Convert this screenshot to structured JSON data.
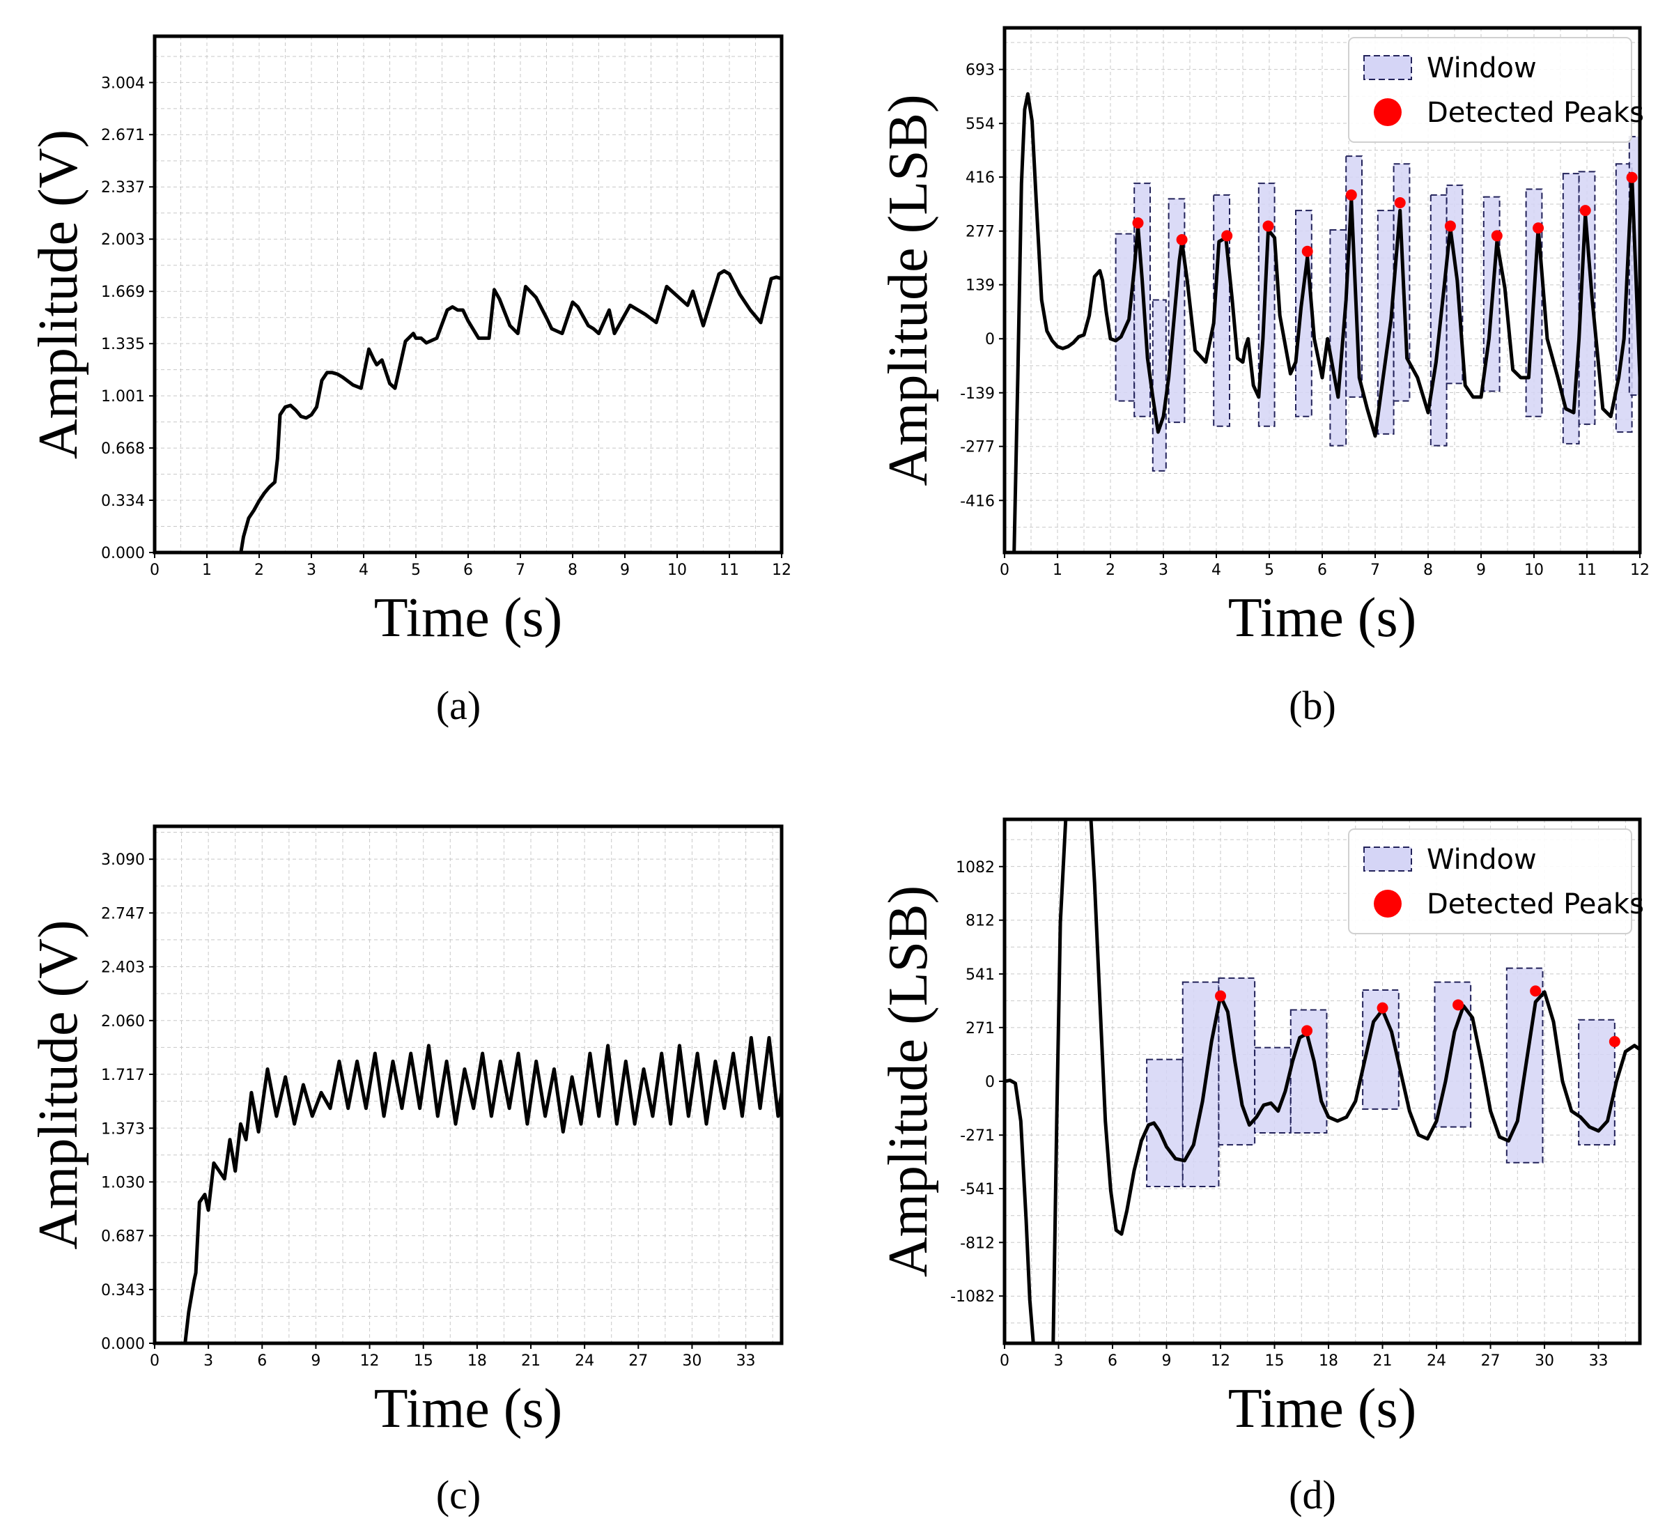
{
  "figure": {
    "panels": [
      "(a)",
      "(b)",
      "(c)",
      "(d)"
    ]
  },
  "chart_data": [
    {
      "id": "a",
      "type": "line",
      "caption_letter": "a",
      "xlabel": "Time (s)",
      "ylabel": "Amplitude (V)",
      "xlim": [
        0,
        12
      ],
      "ylim": [
        0,
        3.3
      ],
      "xticks": [
        0,
        1,
        2,
        3,
        4,
        5,
        6,
        7,
        8,
        9,
        10,
        11,
        12
      ],
      "yticks": [
        0.0,
        0.334,
        0.668,
        1.001,
        1.335,
        1.669,
        2.003,
        2.337,
        2.671,
        3.004
      ],
      "ytick_labels": [
        "0.000",
        "0.334",
        "0.668",
        "1.001",
        "1.335",
        "1.669",
        "2.003",
        "2.337",
        "2.671",
        "3.004"
      ],
      "minor_x": 0.5,
      "minor_y": 0.1669,
      "line_color": "#000000",
      "series": [
        {
          "name": "signal",
          "x": [
            0,
            1.65,
            1.7,
            1.8,
            1.9,
            2.0,
            2.1,
            2.2,
            2.3,
            2.35,
            2.4,
            2.5,
            2.6,
            2.7,
            2.8,
            2.9,
            3.0,
            3.1,
            3.2,
            3.3,
            3.4,
            3.5,
            3.6,
            3.8,
            3.95,
            4.1,
            4.2,
            4.25,
            4.35,
            4.5,
            4.6,
            4.8,
            4.95,
            5.0,
            5.1,
            5.2,
            5.4,
            5.6,
            5.7,
            5.8,
            5.9,
            6.0,
            6.2,
            6.4,
            6.5,
            6.6,
            6.8,
            6.95,
            7.1,
            7.3,
            7.5,
            7.6,
            7.8,
            8.0,
            8.1,
            8.3,
            8.4,
            8.5,
            8.7,
            8.8,
            9.1,
            9.2,
            9.4,
            9.6,
            9.8,
            10.0,
            10.2,
            10.3,
            10.5,
            10.8,
            10.9,
            11.0,
            11.2,
            11.4,
            11.6,
            11.8,
            11.9,
            12.0
          ],
          "y": [
            0,
            0,
            0.1,
            0.22,
            0.27,
            0.33,
            0.38,
            0.42,
            0.45,
            0.6,
            0.88,
            0.93,
            0.94,
            0.91,
            0.87,
            0.86,
            0.88,
            0.93,
            1.1,
            1.15,
            1.15,
            1.14,
            1.12,
            1.07,
            1.05,
            1.3,
            1.23,
            1.2,
            1.23,
            1.08,
            1.05,
            1.35,
            1.4,
            1.37,
            1.37,
            1.34,
            1.37,
            1.55,
            1.57,
            1.55,
            1.55,
            1.48,
            1.37,
            1.37,
            1.68,
            1.62,
            1.45,
            1.4,
            1.7,
            1.63,
            1.5,
            1.43,
            1.4,
            1.6,
            1.57,
            1.45,
            1.43,
            1.4,
            1.55,
            1.4,
            1.58,
            1.56,
            1.52,
            1.47,
            1.7,
            1.64,
            1.58,
            1.67,
            1.45,
            1.78,
            1.8,
            1.78,
            1.65,
            1.55,
            1.47,
            1.75,
            1.76,
            1.75
          ]
        }
      ]
    },
    {
      "id": "b",
      "type": "line",
      "caption_letter": "b",
      "xlabel": "Time (s)",
      "ylabel": "Amplitude (LSB)",
      "xlim": [
        0,
        12
      ],
      "ylim": [
        -550,
        800
      ],
      "xticks": [
        0,
        1,
        2,
        3,
        4,
        5,
        6,
        7,
        8,
        9,
        10,
        11,
        12
      ],
      "yticks": [
        -416,
        -277,
        -139,
        0,
        139,
        277,
        416,
        554,
        693
      ],
      "ytick_labels": [
        "-416",
        "-277",
        "-139",
        "0",
        "139",
        "277",
        "416",
        "554",
        "693"
      ],
      "minor_x": 0.5,
      "minor_y": 69.3,
      "line_color": "#000000",
      "window_color": "#d5d5f6",
      "window_edge": "#22225a",
      "peak_color": "#ff0000",
      "legend": {
        "window": "Window",
        "peaks": "Detected Peaks",
        "position": "top-right"
      },
      "series": [
        {
          "name": "filtered",
          "x": [
            0.18,
            0.25,
            0.32,
            0.38,
            0.44,
            0.52,
            0.6,
            0.7,
            0.8,
            0.9,
            1.0,
            1.1,
            1.2,
            1.3,
            1.4,
            1.5,
            1.6,
            1.7,
            1.8,
            1.85,
            1.92,
            2.0,
            2.1,
            2.2,
            2.35,
            2.45,
            2.52,
            2.6,
            2.7,
            2.8,
            2.9,
            3.0,
            3.1,
            3.2,
            3.3,
            3.35,
            3.45,
            3.6,
            3.8,
            3.95,
            4.05,
            4.18,
            4.3,
            4.4,
            4.5,
            4.55,
            4.6,
            4.7,
            4.8,
            4.88,
            4.98,
            5.1,
            5.2,
            5.4,
            5.5,
            5.6,
            5.72,
            5.85,
            6.0,
            6.1,
            6.3,
            6.45,
            6.55,
            6.7,
            6.85,
            7.0,
            7.15,
            7.3,
            7.47,
            7.6,
            7.8,
            8.0,
            8.15,
            8.3,
            8.42,
            8.55,
            8.7,
            8.85,
            9.0,
            9.15,
            9.3,
            9.45,
            9.6,
            9.75,
            9.9,
            10.08,
            10.25,
            10.45,
            10.6,
            10.75,
            10.85,
            10.97,
            11.1,
            11.3,
            11.45,
            11.6,
            11.7,
            11.85,
            12.0
          ],
          "y": [
            -550,
            -100,
            400,
            590,
            630,
            560,
            350,
            100,
            20,
            -5,
            -20,
            -25,
            -20,
            -10,
            5,
            10,
            60,
            160,
            175,
            150,
            70,
            0,
            -5,
            5,
            50,
            180,
            290,
            150,
            -50,
            -150,
            -240,
            -200,
            -100,
            50,
            200,
            250,
            150,
            -30,
            -60,
            40,
            250,
            260,
            100,
            -50,
            -60,
            -20,
            0,
            -120,
            -150,
            0,
            280,
            260,
            60,
            -90,
            -60,
            80,
            210,
            0,
            -100,
            0,
            -150,
            100,
            360,
            -100,
            -180,
            -250,
            -100,
            50,
            330,
            -50,
            -100,
            -190,
            -60,
            130,
            285,
            150,
            -120,
            -150,
            -150,
            0,
            250,
            130,
            -80,
            -100,
            -100,
            285,
            0,
            -100,
            -180,
            -190,
            0,
            320,
            100,
            -180,
            -200,
            -100,
            0,
            420,
            -100
          ]
        }
      ],
      "windows": [
        {
          "x0": 2.1,
          "x1": 2.45,
          "y0": -160,
          "y1": 270
        },
        {
          "x0": 2.45,
          "x1": 2.75,
          "y0": -200,
          "y1": 400
        },
        {
          "x0": 2.8,
          "x1": 3.05,
          "y0": -340,
          "y1": 100
        },
        {
          "x0": 3.1,
          "x1": 3.4,
          "y0": -215,
          "y1": 360
        },
        {
          "x0": 3.95,
          "x1": 4.25,
          "y0": -225,
          "y1": 370
        },
        {
          "x0": 4.8,
          "x1": 5.1,
          "y0": -225,
          "y1": 400
        },
        {
          "x0": 5.5,
          "x1": 5.8,
          "y0": -200,
          "y1": 330
        },
        {
          "x0": 6.15,
          "x1": 6.45,
          "y0": -275,
          "y1": 280
        },
        {
          "x0": 6.45,
          "x1": 6.75,
          "y0": -150,
          "y1": 470
        },
        {
          "x0": 7.05,
          "x1": 7.35,
          "y0": -245,
          "y1": 330
        },
        {
          "x0": 7.35,
          "x1": 7.65,
          "y0": -160,
          "y1": 450
        },
        {
          "x0": 8.05,
          "x1": 8.35,
          "y0": -275,
          "y1": 370
        },
        {
          "x0": 8.35,
          "x1": 8.65,
          "y0": -115,
          "y1": 395
        },
        {
          "x0": 9.05,
          "x1": 9.35,
          "y0": -135,
          "y1": 365
        },
        {
          "x0": 9.85,
          "x1": 10.15,
          "y0": -200,
          "y1": 385
        },
        {
          "x0": 10.55,
          "x1": 10.85,
          "y0": -270,
          "y1": 425
        },
        {
          "x0": 10.85,
          "x1": 11.15,
          "y0": -220,
          "y1": 430
        },
        {
          "x0": 11.55,
          "x1": 11.85,
          "y0": -240,
          "y1": 450
        },
        {
          "x0": 11.8,
          "x1": 12.1,
          "y0": -145,
          "y1": 520
        }
      ],
      "peaks": {
        "x": [
          2.52,
          3.35,
          4.2,
          4.98,
          5.72,
          6.55,
          7.47,
          8.42,
          9.3,
          10.08,
          10.97,
          11.85
        ],
        "y": [
          298,
          255,
          265,
          290,
          225,
          370,
          350,
          290,
          265,
          285,
          330,
          415
        ]
      }
    },
    {
      "id": "c",
      "type": "line",
      "caption_letter": "c",
      "xlabel": "Time (s)",
      "ylabel": "Amplitude (V)",
      "xlim": [
        0,
        35
      ],
      "ylim": [
        0,
        3.3
      ],
      "xticks": [
        0,
        3,
        6,
        9,
        12,
        15,
        18,
        21,
        24,
        27,
        30,
        33
      ],
      "yticks": [
        0.0,
        0.343,
        0.687,
        1.03,
        1.373,
        1.717,
        2.06,
        2.403,
        2.747,
        3.09
      ],
      "ytick_labels": [
        "0.000",
        "0.343",
        "0.687",
        "1.030",
        "1.373",
        "1.717",
        "2.060",
        "2.403",
        "2.747",
        "3.090"
      ],
      "minor_x": 1.5,
      "minor_y": 0.1717,
      "line_color": "#000000",
      "series": [
        {
          "name": "signal",
          "x": [
            0,
            1.7,
            1.9,
            2.2,
            2.3,
            2.5,
            2.8,
            3.0,
            3.3,
            3.6,
            3.9,
            4.2,
            4.5,
            4.8,
            5.1,
            5.4,
            5.8,
            6.3,
            6.8,
            7.3,
            7.8,
            8.3,
            8.8,
            9.3,
            9.8,
            10.3,
            10.8,
            11.3,
            11.8,
            12.3,
            12.8,
            13.3,
            13.8,
            14.3,
            14.8,
            15.3,
            15.8,
            16.3,
            16.8,
            17.3,
            17.8,
            18.3,
            18.8,
            19.3,
            19.8,
            20.3,
            20.8,
            21.3,
            21.8,
            22.3,
            22.8,
            23.3,
            23.8,
            24.3,
            24.8,
            25.3,
            25.8,
            26.3,
            26.8,
            27.3,
            27.8,
            28.3,
            28.8,
            29.3,
            29.8,
            30.3,
            30.8,
            31.3,
            31.8,
            32.3,
            32.8,
            33.3,
            33.8,
            34.3,
            34.8,
            35.0
          ],
          "y": [
            0,
            0,
            0.2,
            0.4,
            0.45,
            0.9,
            0.95,
            0.85,
            1.15,
            1.1,
            1.05,
            1.3,
            1.1,
            1.4,
            1.3,
            1.6,
            1.35,
            1.75,
            1.45,
            1.7,
            1.4,
            1.65,
            1.45,
            1.6,
            1.5,
            1.8,
            1.5,
            1.8,
            1.5,
            1.85,
            1.45,
            1.8,
            1.5,
            1.85,
            1.5,
            1.9,
            1.45,
            1.8,
            1.4,
            1.75,
            1.5,
            1.85,
            1.45,
            1.8,
            1.5,
            1.85,
            1.4,
            1.8,
            1.45,
            1.75,
            1.35,
            1.7,
            1.4,
            1.85,
            1.45,
            1.9,
            1.4,
            1.8,
            1.4,
            1.75,
            1.45,
            1.85,
            1.4,
            1.9,
            1.45,
            1.85,
            1.4,
            1.8,
            1.5,
            1.85,
            1.45,
            1.95,
            1.5,
            1.95,
            1.45,
            1.6
          ]
        }
      ]
    },
    {
      "id": "d",
      "type": "line",
      "caption_letter": "d",
      "xlabel": "Time (s)",
      "ylabel": "Amplitude (LSB)",
      "xlim": [
        0,
        35.3
      ],
      "ylim": [
        -1320,
        1320
      ],
      "xticks": [
        0,
        3,
        6,
        9,
        12,
        15,
        18,
        21,
        24,
        27,
        30,
        33
      ],
      "yticks": [
        -1082,
        -812,
        -541,
        -271,
        0,
        271,
        541,
        812,
        1082
      ],
      "ytick_labels": [
        "-1082",
        "-812",
        "-541",
        "-271",
        "0",
        "271",
        "541",
        "812",
        "1082"
      ],
      "minor_x": 1.5,
      "minor_y": 135.3,
      "line_color": "#000000",
      "window_color": "#d5d5f6",
      "window_edge": "#22225a",
      "peak_color": "#ff0000",
      "legend": {
        "window": "Window",
        "peaks": "Detected Peaks",
        "position": "top-right"
      },
      "series": [
        {
          "name": "filtered",
          "x": [
            0,
            0.3,
            0.6,
            0.9,
            1.2,
            1.4,
            1.6,
            2.0,
            2.4,
            2.7,
            2.9,
            3.1,
            3.4,
            3.8,
            4.2,
            4.5,
            4.8,
            5.0,
            5.3,
            5.6,
            5.9,
            6.2,
            6.5,
            6.8,
            7.2,
            7.6,
            8.0,
            8.3,
            8.6,
            9.0,
            9.5,
            10.0,
            10.5,
            11.0,
            11.5,
            12.0,
            12.4,
            12.8,
            13.2,
            13.6,
            14.0,
            14.4,
            14.8,
            15.2,
            15.6,
            16.0,
            16.4,
            16.8,
            17.2,
            17.6,
            18.0,
            18.5,
            19.0,
            19.5,
            20.0,
            20.5,
            21.0,
            21.5,
            22.0,
            22.5,
            23.0,
            23.5,
            24.0,
            24.5,
            25.0,
            25.5,
            26.0,
            26.5,
            27.0,
            27.5,
            28.0,
            28.5,
            29.0,
            29.5,
            30.0,
            30.5,
            31.0,
            31.5,
            32.0,
            32.5,
            33.0,
            33.5,
            34.0,
            34.5,
            35.0,
            35.3
          ],
          "y": [
            0,
            5,
            -10,
            -200,
            -700,
            -1100,
            -1320,
            -1320,
            -1320,
            -1320,
            -200,
            800,
            1320,
            1320,
            1320,
            1320,
            1320,
            1000,
            400,
            -200,
            -550,
            -750,
            -770,
            -650,
            -450,
            -300,
            -220,
            -210,
            -250,
            -330,
            -390,
            -400,
            -320,
            -100,
            200,
            430,
            350,
            100,
            -120,
            -220,
            -180,
            -120,
            -110,
            -150,
            -50,
            100,
            220,
            240,
            100,
            -100,
            -180,
            -200,
            -180,
            -100,
            100,
            300,
            360,
            250,
            50,
            -150,
            -270,
            -290,
            -200,
            0,
            250,
            380,
            320,
            100,
            -150,
            -280,
            -300,
            -200,
            100,
            400,
            450,
            300,
            0,
            -150,
            -180,
            -230,
            -250,
            -200,
            0,
            150,
            180,
            160
          ]
        }
      ],
      "windows": [
        {
          "x0": 7.9,
          "x1": 9.9,
          "y0": -530,
          "y1": 110
        },
        {
          "x0": 9.9,
          "x1": 11.9,
          "y0": -530,
          "y1": 500
        },
        {
          "x0": 11.9,
          "x1": 13.9,
          "y0": -320,
          "y1": 520
        },
        {
          "x0": 13.9,
          "x1": 15.9,
          "y0": -260,
          "y1": 170
        },
        {
          "x0": 15.9,
          "x1": 17.9,
          "y0": -260,
          "y1": 360
        },
        {
          "x0": 19.9,
          "x1": 21.9,
          "y0": -140,
          "y1": 460
        },
        {
          "x0": 23.9,
          "x1": 25.9,
          "y0": -230,
          "y1": 500
        },
        {
          "x0": 27.9,
          "x1": 29.9,
          "y0": -410,
          "y1": 570
        },
        {
          "x0": 31.9,
          "x1": 33.9,
          "y0": -320,
          "y1": 310
        }
      ],
      "peaks": {
        "x": [
          12.0,
          16.8,
          21.0,
          25.2,
          29.5,
          33.9
        ],
        "y": [
          430,
          255,
          370,
          385,
          455,
          200
        ]
      }
    }
  ]
}
